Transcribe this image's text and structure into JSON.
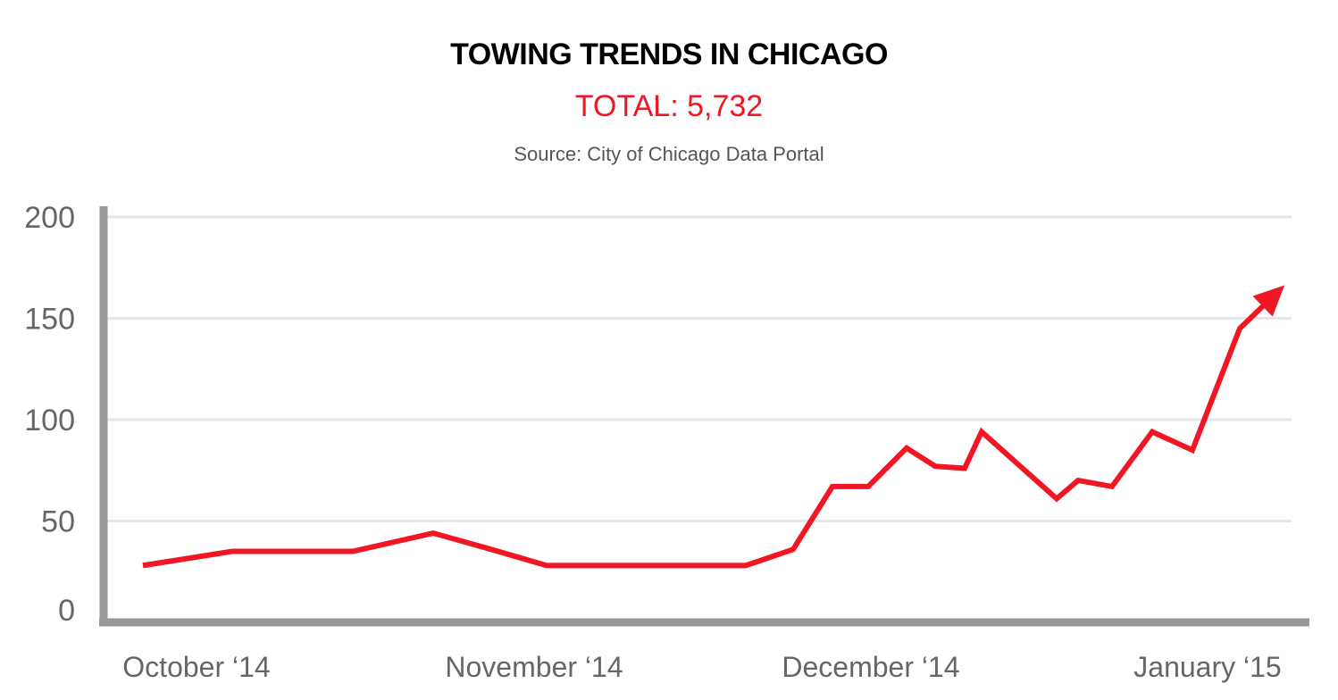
{
  "chart_data": {
    "type": "line",
    "title": "TOWING TRENDS IN CHICAGO",
    "subtitle": "TOTAL: 5,732",
    "source": "Source: City of Chicago Data Portal",
    "xlabel": "",
    "ylabel": "",
    "ylim": [
      0,
      200
    ],
    "yticks": [
      0,
      50,
      100,
      150,
      200
    ],
    "x_tick_labels": [
      "October ‘14",
      "November ‘14",
      "December ‘14",
      "January ‘15"
    ],
    "grid": true,
    "colors": {
      "line": "#f11624",
      "axis": "#999999",
      "grid": "#e6e6e6"
    },
    "series": [
      {
        "values": [
          28,
          35,
          35,
          35,
          44,
          36,
          28,
          28,
          28,
          28,
          36,
          67,
          67,
          86,
          77,
          76,
          94,
          61,
          70,
          67,
          94,
          85,
          145,
          162
        ]
      }
    ]
  }
}
